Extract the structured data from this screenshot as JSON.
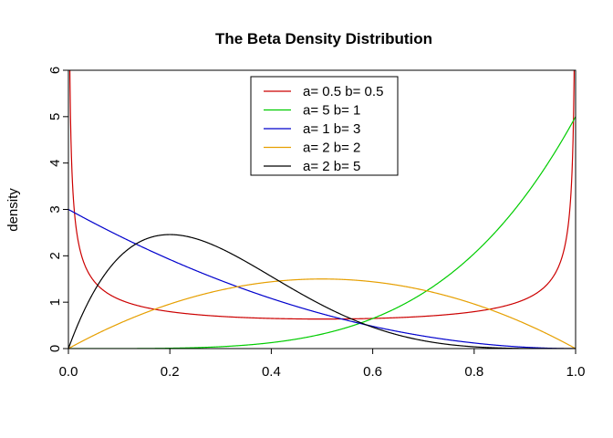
{
  "chart_data": {
    "type": "line",
    "title": "The Beta Density Distribution",
    "xlabel": "",
    "ylabel": "density",
    "xlim": [
      0,
      1
    ],
    "ylim": [
      0,
      6
    ],
    "x_ticks": [
      "0.0",
      "0.2",
      "0.4",
      "0.6",
      "0.8",
      "1.0"
    ],
    "x_tick_values": [
      0,
      0.2,
      0.4,
      0.6,
      0.8,
      1.0
    ],
    "y_ticks": [
      "0",
      "1",
      "2",
      "3",
      "4",
      "5",
      "6"
    ],
    "y_tick_values": [
      0,
      1,
      2,
      3,
      4,
      5,
      6
    ],
    "grid": false,
    "legend_position": "top-center",
    "series": [
      {
        "name": "a= 0.5  b= 0.5",
        "a": 0.5,
        "b": 0.5,
        "color": "#cc0000"
      },
      {
        "name": "a= 5  b= 1",
        "a": 5,
        "b": 1,
        "color": "#00cc00"
      },
      {
        "name": "a= 1  b= 3",
        "a": 1,
        "b": 3,
        "color": "#0000cc"
      },
      {
        "name": "a= 2  b= 2",
        "a": 2,
        "b": 2,
        "color": "#e69f00"
      },
      {
        "name": "a= 2  b= 5",
        "a": 2,
        "b": 5,
        "color": "#000000"
      }
    ]
  }
}
